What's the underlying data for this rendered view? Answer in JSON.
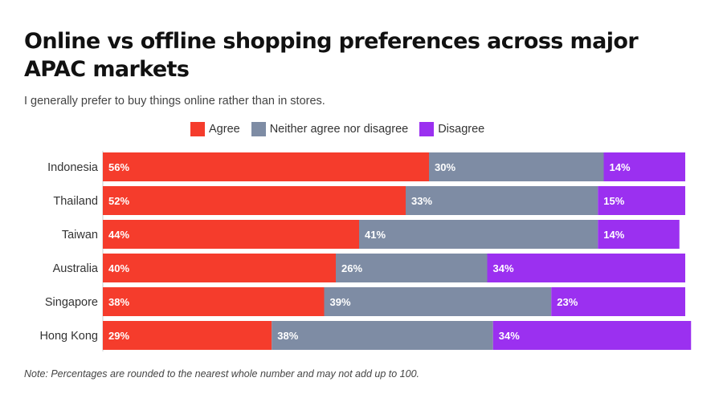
{
  "title": "Online vs offline shopping preferences across major APAC markets",
  "subtitle": "I generally prefer to buy things online rather than in stores.",
  "note": "Note: Percentages are rounded to the nearest whole number and may not add up to 100.",
  "colors": {
    "agree": "#f53c2c",
    "neither": "#7e8ca4",
    "disagree": "#9b30f0"
  },
  "chart_data": {
    "type": "bar",
    "orientation": "horizontal",
    "stacked": true,
    "categories": [
      "Indonesia",
      "Thailand",
      "Taiwan",
      "Australia",
      "Singapore",
      "Hong Kong"
    ],
    "series": [
      {
        "name": "Agree",
        "values": [
          56,
          52,
          44,
          40,
          38,
          29
        ],
        "labels": [
          "56%",
          "52%",
          "44%",
          "40%",
          "38%",
          "29%"
        ]
      },
      {
        "name": "Neither agree nor disagree",
        "values": [
          30,
          33,
          41,
          26,
          39,
          38
        ],
        "labels": [
          "30%",
          "33%",
          "41%",
          "26%",
          "39%",
          "38%"
        ]
      },
      {
        "name": "Disagree",
        "values": [
          14,
          15,
          14,
          34,
          23,
          34
        ],
        "labels": [
          "14%",
          "15%",
          "14%",
          "34%",
          "23%",
          "34%"
        ]
      }
    ],
    "legend_position": "top",
    "grid": false
  }
}
